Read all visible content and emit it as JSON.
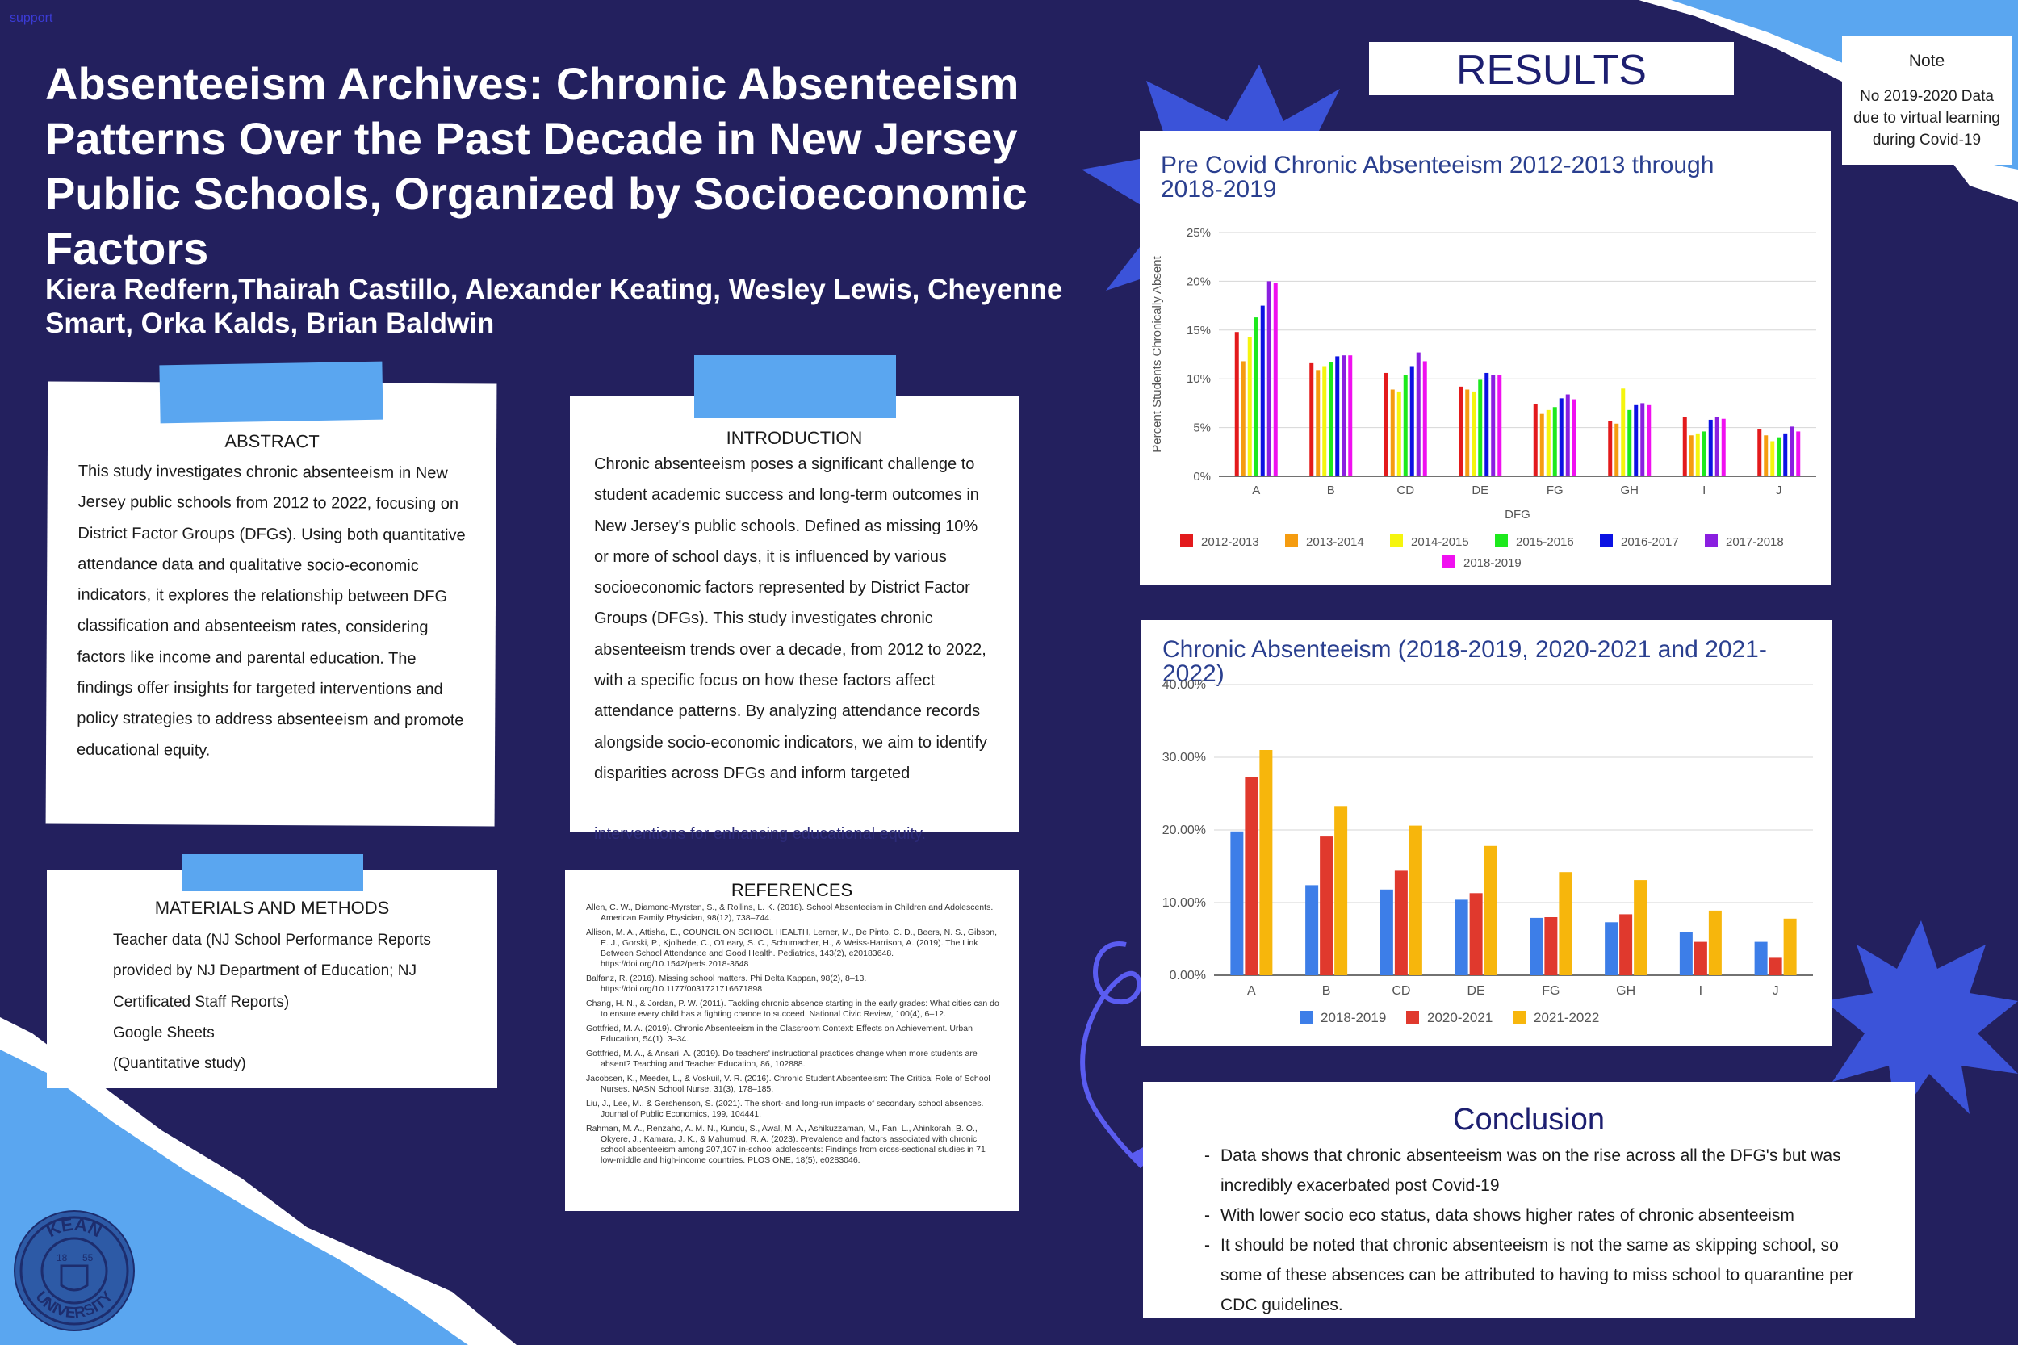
{
  "support_link": "support",
  "title": "Absenteeism Archives: Chronic Absenteeism Patterns Over the Past Decade in New Jersey Public Schools, Organized by Socioeconomic Factors",
  "authors": "Kiera Redfern,Thairah Castillo, Alexander Keating, Wesley Lewis, Cheyenne Smart, Orka Kalds, Brian Baldwin",
  "abstract": {
    "heading": "ABSTRACT",
    "text": "This study investigates chronic absenteeism in New Jersey public schools from 2012 to 2022, focusing on District Factor Groups (DFGs). Using both quantitative attendance data and qualitative socio-economic indicators, it explores the relationship between DFG classification and absenteeism rates, considering factors like income and parental education. The findings offer insights for targeted interventions and policy strategies to address absenteeism and promote educational equity."
  },
  "introduction": {
    "heading": "INTRODUCTION",
    "text": "Chronic absenteeism poses a significant challenge to student academic success and long-term outcomes in New Jersey's public schools. Defined as missing 10% or more of school days, it is influenced by various socioeconomic factors represented by District Factor Groups (DFGs). This study investigates chronic absenteeism trends over a decade, from 2012 to 2022, with a specific focus on how these factors affect attendance patterns. By analyzing attendance records alongside socio-economic indicators, we aim to identify disparities across DFGs and inform targeted",
    "overflow": "interventions for enhancing educational equity."
  },
  "methods": {
    "heading": "MATERIALS AND METHODS",
    "lines": [
      "Teacher data (NJ School Performance Reports",
      "provided by NJ Department of Education; NJ",
      "Certificated Staff Reports)",
      "Google Sheets",
      "(Quantitative study)"
    ]
  },
  "references": {
    "heading": "REFERENCES",
    "items": [
      "Allen, C. W., Diamond-Myrsten, S., & Rollins, L. K. (2018). School Absenteeism in Children and Adolescents. American Family Physician, 98(12), 738–744.",
      "Allison, M. A., Attisha, E., COUNCIL ON SCHOOL HEALTH, Lerner, M., De Pinto, C. D., Beers, N. S., Gibson, E. J., Gorski, P., Kjolhede, C., O'Leary, S. C., Schumacher, H., & Weiss-Harrison, A. (2019). The Link Between School Attendance and Good Health. Pediatrics, 143(2), e20183648. https://doi.org/10.1542/peds.2018-3648",
      "Balfanz, R. (2016). Missing school matters. Phi Delta Kappan, 98(2), 8–13. https://doi.org/10.1177/0031721716671898",
      "Chang, H. N., & Jordan, P. W. (2011). Tackling chronic absence starting in the early grades: What cities can do to ensure every child has a fighting chance to succeed. National Civic Review, 100(4), 6–12.",
      "Gottfried, M. A. (2019). Chronic Absenteeism in the Classroom Context: Effects on Achievement. Urban Education, 54(1), 3–34.",
      "Gottfried, M. A., & Ansari, A. (2019). Do teachers' instructional practices change when more students are absent? Teaching and Teacher Education, 86, 102888.",
      "Jacobsen, K., Meeder, L., & Voskuil, V. R. (2016). Chronic Student Absenteeism: The Critical Role of School Nurses. NASN School Nurse, 31(3), 178–185.",
      "Liu, J., Lee, M., & Gershenson, S. (2021). The short- and long-run impacts of secondary school absences. Journal of Public Economics, 199, 104441.",
      "Rahman, M. A., Renzaho, A. M. N., Kundu, S., Awal, M. A., Ashikuzzaman, M., Fan, L., Ahinkorah, B. O., Okyere, J., Kamara, J. K., & Mahumud, R. A. (2023). Prevalence and factors associated with chronic school absenteeism among 207,107 in-school adolescents: Findings from cross-sectional studies in 71 low-middle and high-income countries. PLOS ONE, 18(5), e0283046."
    ]
  },
  "results_heading": "RESULTS",
  "note": {
    "heading": "Note",
    "text": "No 2019-2020 Data due to virtual learning during Covid-19"
  },
  "conclusion": {
    "heading": "Conclusion",
    "items": [
      "Data shows that chronic absenteeism was on the rise across all the DFG's but was incredibly exacerbated post Covid-19",
      "With lower socio eco status, data shows higher rates of chronic absenteeism",
      "It should be noted that chronic absenteeism is not the same as skipping school, so some of these absences can be attributed to having to miss school to quarantine per CDC guidelines."
    ]
  },
  "logo": {
    "text_top": "KEAN",
    "text_bottom": "UNIVERSITY",
    "year_left": "18",
    "year_right": "55"
  },
  "chart_data": [
    {
      "type": "bar",
      "title": "Pre Covid Chronic Absenteeism 2012-2013 through 2018-2019",
      "xlabel": "DFG",
      "ylabel": "Percent Students Chronically Absent",
      "ylim": [
        0,
        25
      ],
      "yticks": [
        "0%",
        "5%",
        "10%",
        "15%",
        "20%",
        "25%"
      ],
      "grid": true,
      "legend_position": "bottom",
      "categories": [
        "A",
        "B",
        "CD",
        "DE",
        "FG",
        "GH",
        "I",
        "J"
      ],
      "series": [
        {
          "name": "2012-2013",
          "color": "#e31a1c",
          "values": [
            14.8,
            11.6,
            10.6,
            9.2,
            7.4,
            5.7,
            6.1,
            4.8
          ]
        },
        {
          "name": "2013-2014",
          "color": "#f59c10",
          "values": [
            11.8,
            10.9,
            8.9,
            8.9,
            6.4,
            5.4,
            4.2,
            4.2
          ]
        },
        {
          "name": "2014-2015",
          "color": "#f5f50e",
          "values": [
            14.3,
            11.3,
            8.7,
            8.7,
            6.8,
            9.0,
            4.4,
            3.6
          ]
        },
        {
          "name": "2015-2016",
          "color": "#1de91d",
          "values": [
            16.3,
            11.7,
            10.4,
            9.9,
            7.1,
            6.8,
            4.6,
            4.0
          ]
        },
        {
          "name": "2016-2017",
          "color": "#0b12e3",
          "values": [
            17.5,
            12.3,
            11.3,
            10.6,
            8.0,
            7.3,
            5.8,
            4.4
          ]
        },
        {
          "name": "2017-2018",
          "color": "#8a1fe0",
          "values": [
            20.0,
            12.4,
            12.7,
            10.4,
            8.4,
            7.5,
            6.1,
            5.1
          ]
        },
        {
          "name": "2018-2019",
          "color": "#f010f0",
          "values": [
            19.8,
            12.4,
            11.8,
            10.4,
            7.9,
            7.3,
            5.9,
            4.6
          ]
        }
      ]
    },
    {
      "type": "bar",
      "title": "Chronic Absenteeism (2018-2019, 2020-2021 and 2021-2022)",
      "xlabel": "",
      "ylabel": "",
      "ylim": [
        0,
        40
      ],
      "yticks": [
        "0.00%",
        "10.00%",
        "20.00%",
        "30.00%",
        "40.00%"
      ],
      "grid": true,
      "legend_position": "bottom",
      "categories": [
        "A",
        "B",
        "CD",
        "DE",
        "FG",
        "GH",
        "I",
        "J"
      ],
      "series": [
        {
          "name": "2018-2019",
          "color": "#3d7ee8",
          "values": [
            19.8,
            12.4,
            11.8,
            10.4,
            7.9,
            7.3,
            5.9,
            4.6
          ]
        },
        {
          "name": "2020-2021",
          "color": "#e0392d",
          "values": [
            27.3,
            19.1,
            14.4,
            11.3,
            8.0,
            8.4,
            4.6,
            2.4
          ]
        },
        {
          "name": "2021-2022",
          "color": "#f7b60c",
          "values": [
            31.0,
            23.3,
            20.6,
            17.8,
            14.2,
            13.1,
            8.9,
            7.8
          ]
        }
      ]
    }
  ]
}
